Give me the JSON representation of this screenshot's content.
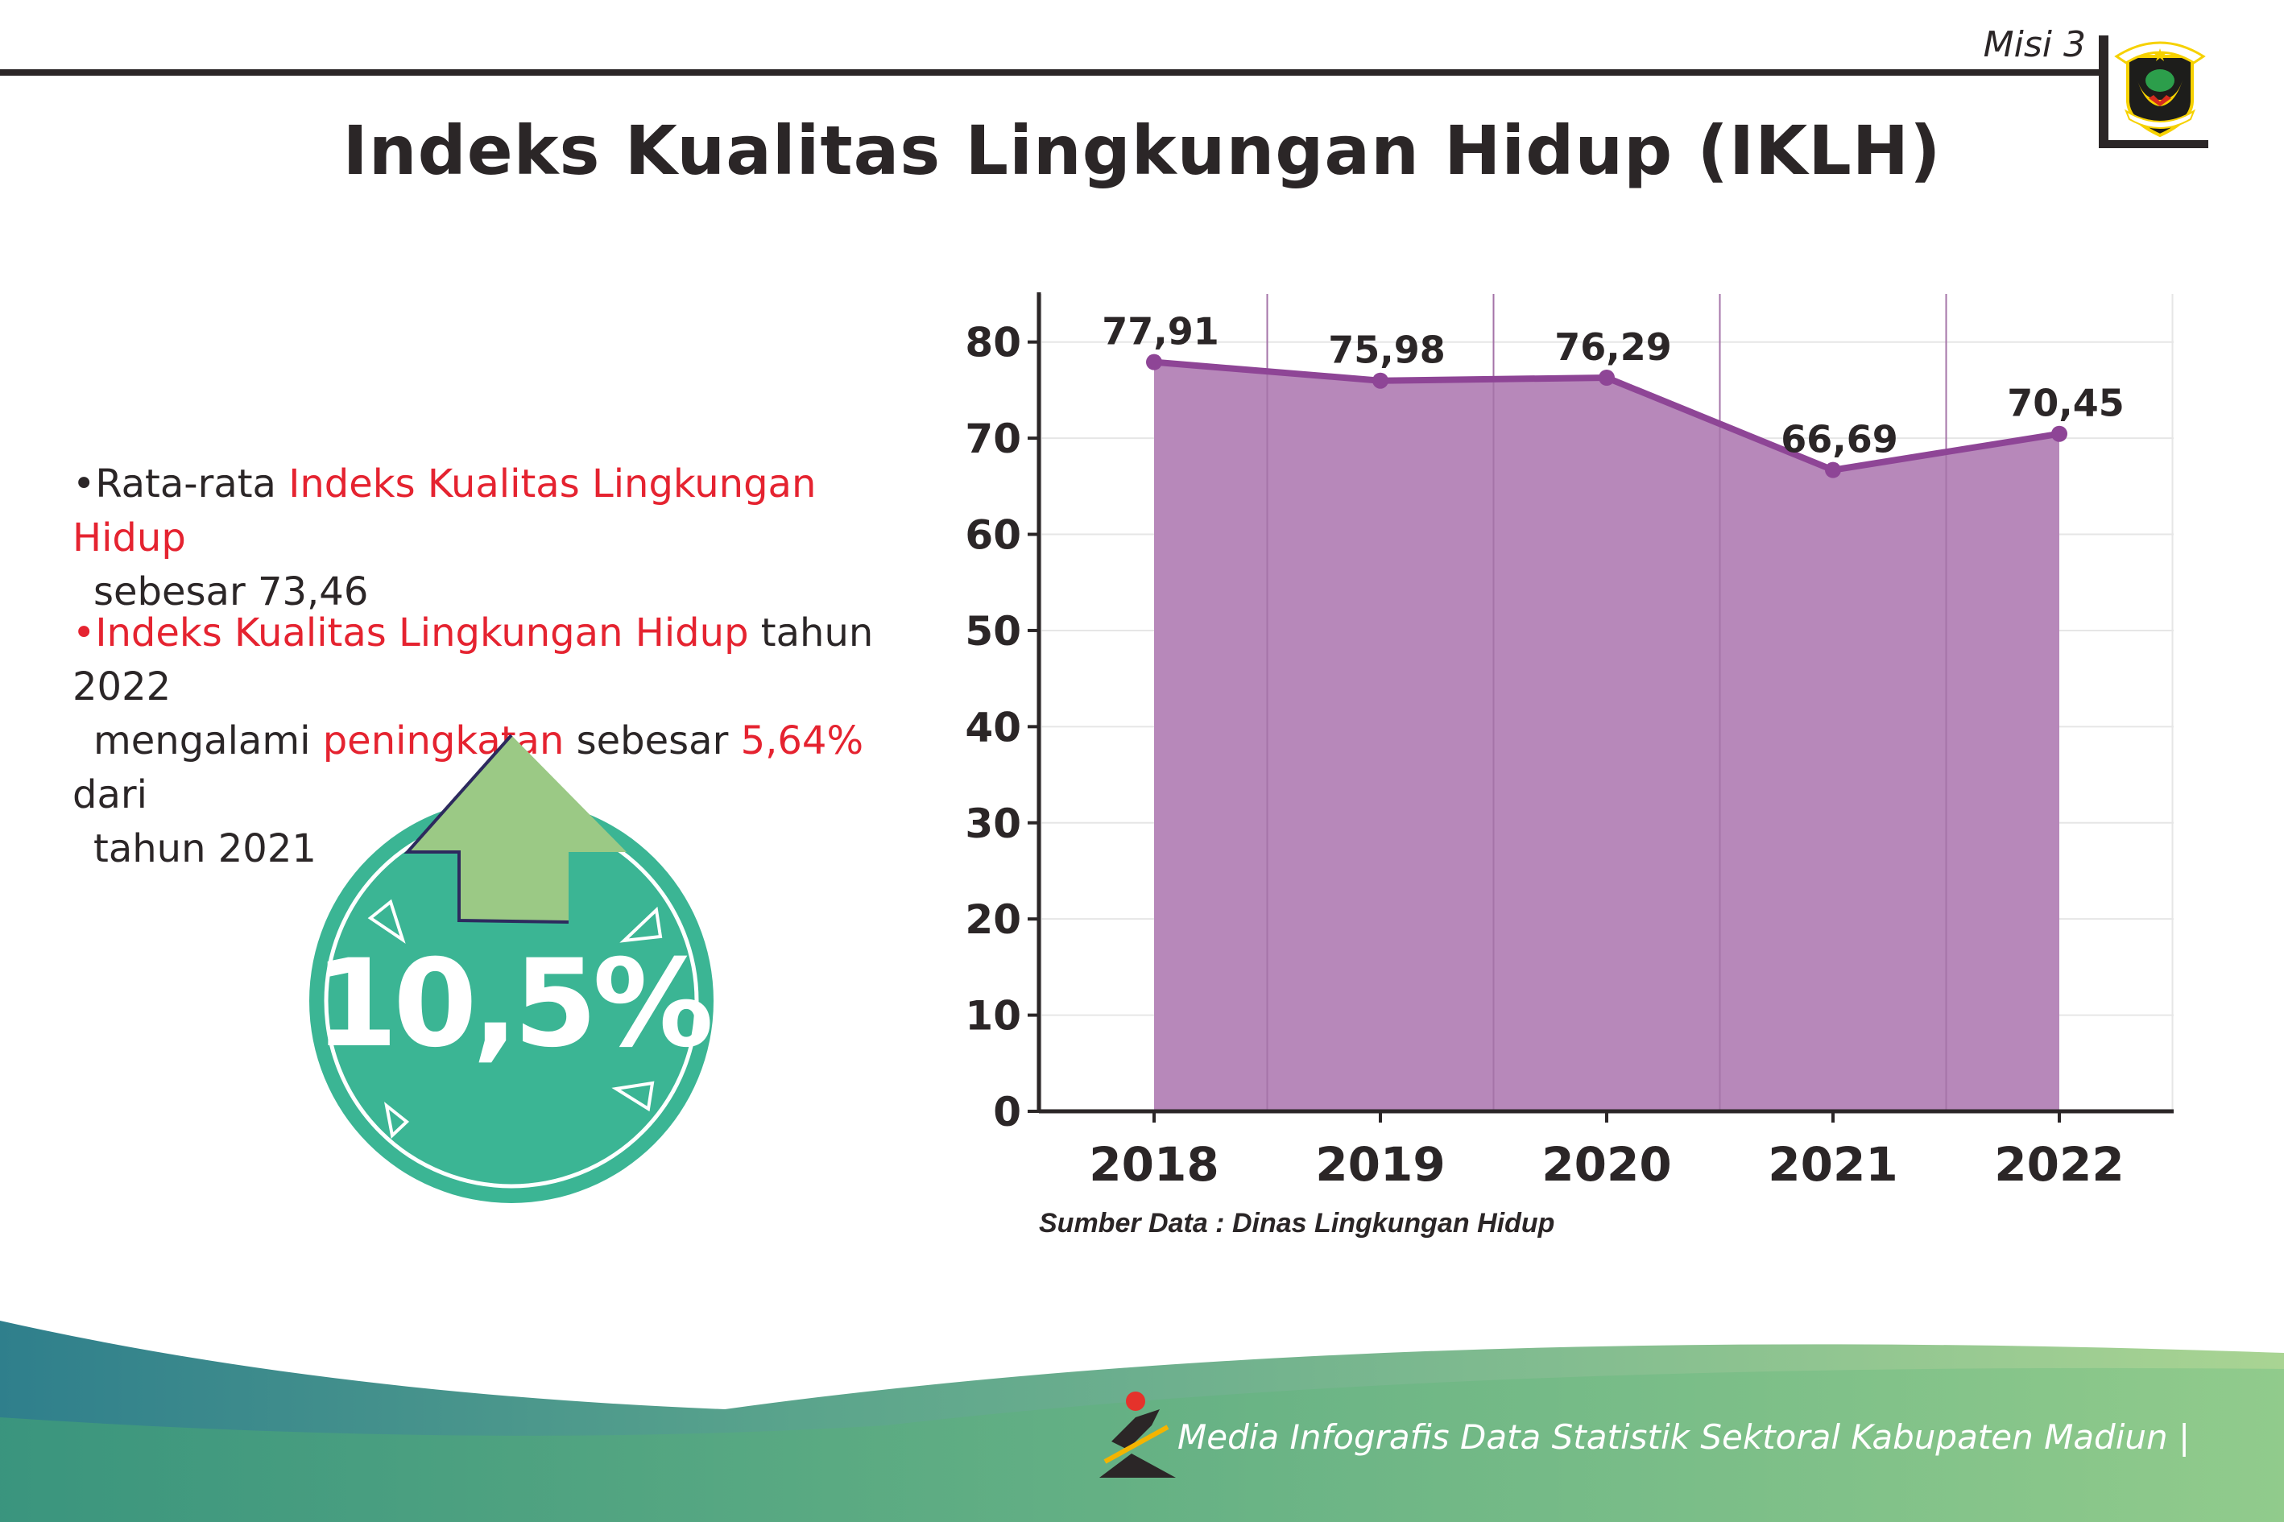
{
  "header": {
    "section_label": "Misi 3",
    "logo_text": [
      "KABUPATEN",
      "MADIUN"
    ],
    "title": "Indeks Kualitas Lingkungan Hidup (IKLH)"
  },
  "summary": {
    "bullet1": {
      "prefix": "•Rata-rata ",
      "highlight": "Indeks Kualitas Lingkungan Hidup",
      "rest": "sebesar 73,46"
    },
    "bullet2": {
      "highlight": "•Indeks Kualitas Lingkungan Hidup",
      "after_highlight": " tahun 2022",
      "line2_prefix": "mengalami ",
      "line2_highlight": "peningkatan",
      "line2_middle": " sebesar ",
      "line2_value": "5,64%",
      "line2_suffix": " dari",
      "line3": "tahun 2021"
    },
    "badge_value": "10,5%",
    "badge_icon": "up-arrow-icon"
  },
  "chart_data": {
    "type": "area",
    "categories": [
      "2018",
      "2019",
      "2020",
      "2021",
      "2022"
    ],
    "values": [
      77.91,
      75.98,
      76.29,
      66.69,
      70.45
    ],
    "data_labels": [
      "77,91",
      "75,98",
      "76,29",
      "66,69",
      "70,45"
    ],
    "y_ticks": [
      "0",
      "10",
      "20",
      "30",
      "40",
      "50",
      "60",
      "70",
      "80"
    ],
    "ylim": [
      0,
      85
    ],
    "grid": true,
    "colors": {
      "fill": "#b686b9",
      "line": "#8e4596"
    }
  },
  "source": "Sumber Data : Dinas Lingkungan Hidup",
  "footer": {
    "text": "Media Infografis Data Statistik Sektoral Kabupaten Madiun |"
  },
  "colors": {
    "accent_red": "#e52330",
    "badge_green": "#3bb594",
    "arrow_green": "#9bc985",
    "text_dark": "#2b2627"
  }
}
